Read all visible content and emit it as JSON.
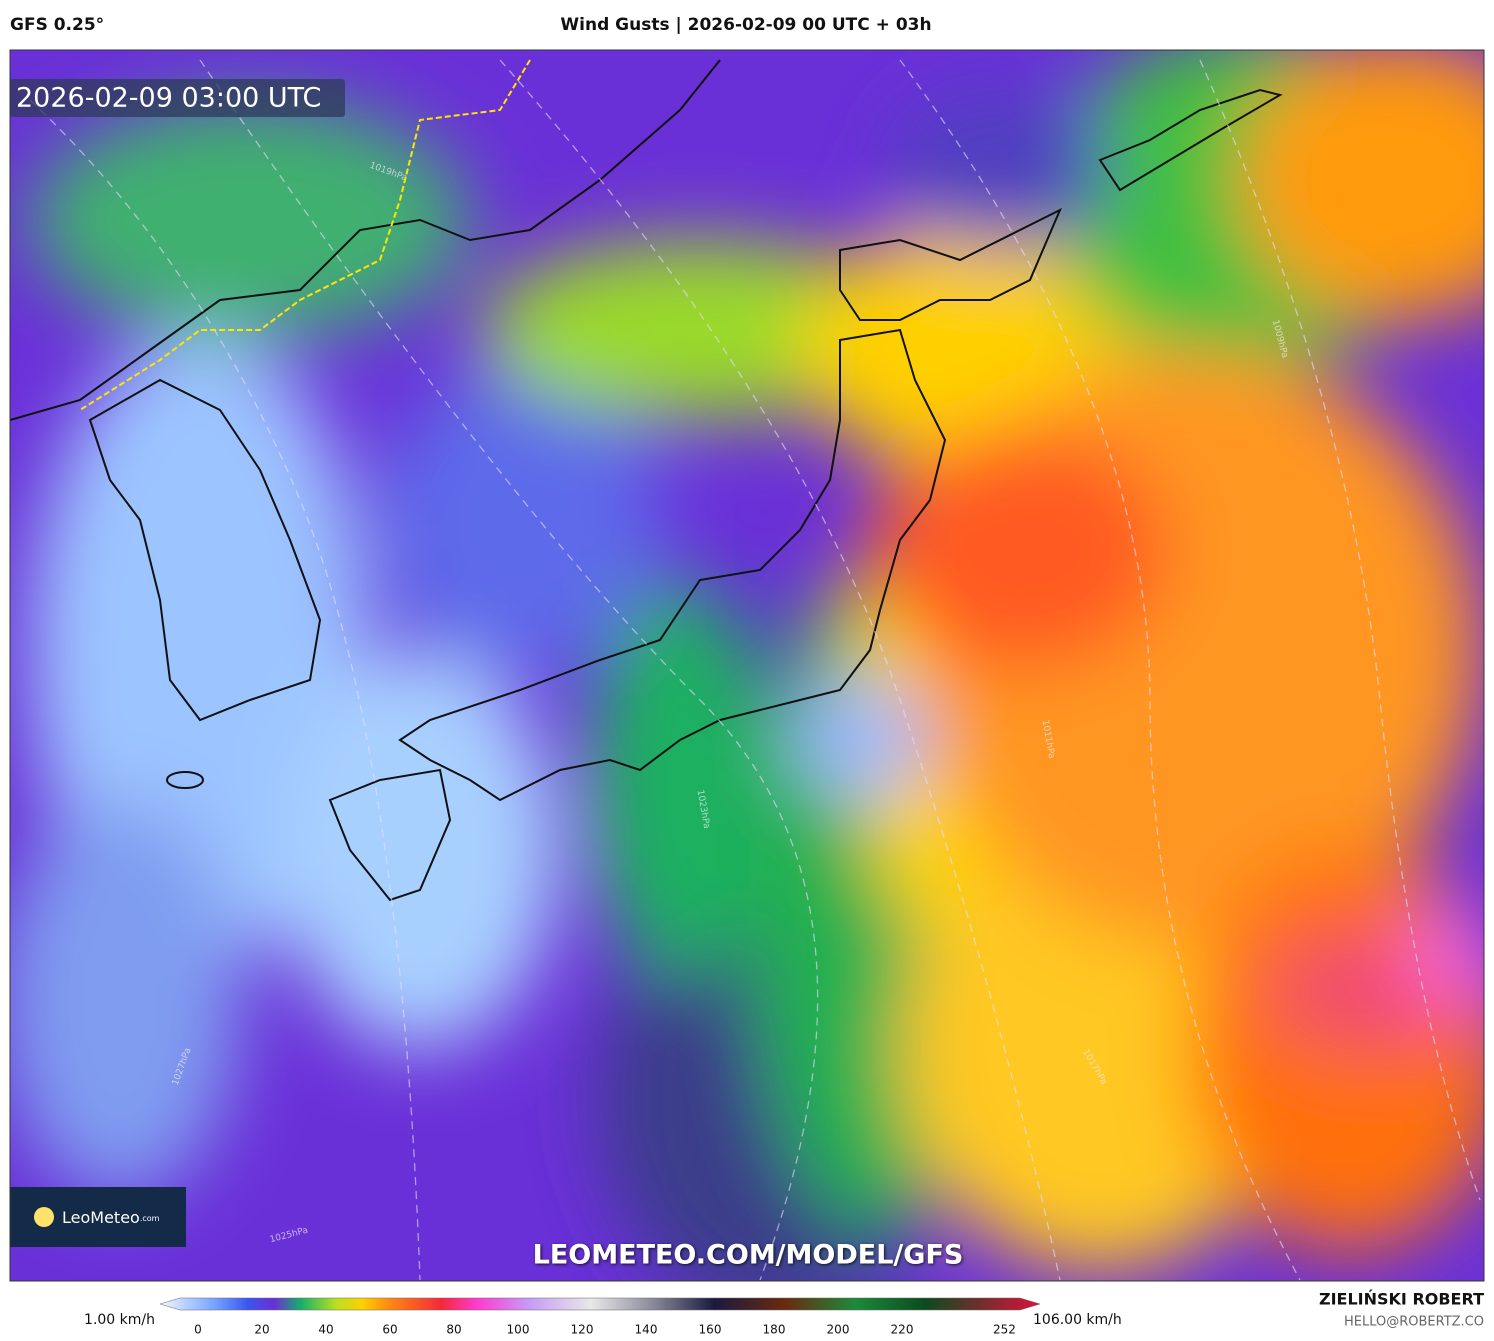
{
  "header": {
    "model": "GFS 0.25°",
    "title": "Wind Gusts | 2026-02-09 00 UTC + 03h"
  },
  "map": {
    "timestamp": "2026-02-09 03:00 UTC",
    "logo": "LeoMeteo",
    "logo_suffix": ".com",
    "watermark": "LEOMETEO.COM/MODEL/GFS",
    "isobar_labels": [
      "1019hPa",
      "1025hPa",
      "1027hPa",
      "1023hPa",
      "1011hPa",
      "1009hPa",
      "1017hPa"
    ]
  },
  "colorbar": {
    "min_label": "1.00 km/h",
    "max_label": "106.00 km/h",
    "ticks": [
      0,
      20,
      40,
      60,
      80,
      100,
      120,
      140,
      160,
      180,
      200,
      220,
      252
    ]
  },
  "footer": {
    "author": "ZIELIŃSKI ROBERT",
    "email": "HELLO@ROBERTZ.CO"
  }
}
